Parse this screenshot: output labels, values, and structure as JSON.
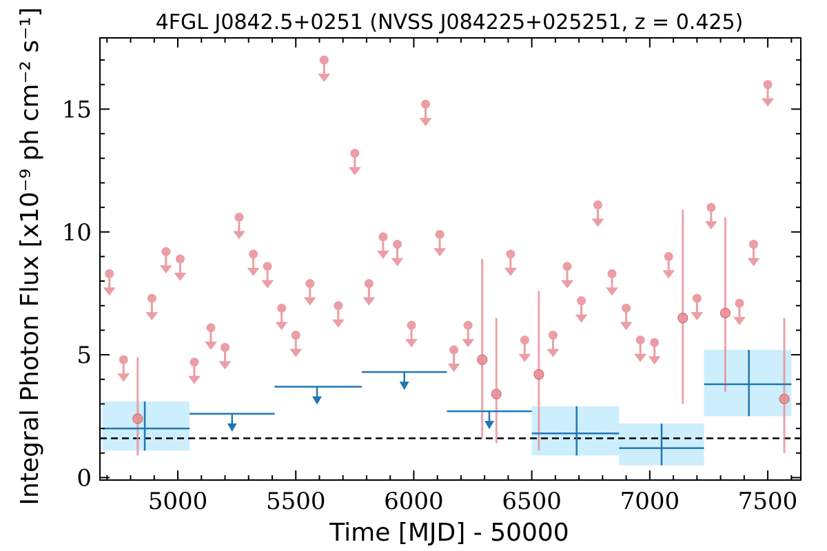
{
  "chart_data": {
    "type": "scatter",
    "title": "4FGL J0842.5+0251 (NVSS J084225+025251, z = 0.425)",
    "xlabel": "Time [MJD] - 50000",
    "ylabel": "Integral Photon Flux [x10⁻⁹ ph cm⁻² s⁻¹]",
    "xlim": [
      4670,
      7640
    ],
    "ylim": [
      -0.1,
      17.9
    ],
    "xticks": [
      5000,
      5500,
      6000,
      6500,
      7000,
      7500
    ],
    "yticks": [
      0,
      5,
      10,
      15
    ],
    "reference_level": 1.6,
    "short_bin_upper_limits": [
      {
        "x": 4710,
        "y": 8.3
      },
      {
        "x": 4770,
        "y": 4.8
      },
      {
        "x": 4890,
        "y": 7.3
      },
      {
        "x": 4950,
        "y": 9.2
      },
      {
        "x": 5010,
        "y": 8.9
      },
      {
        "x": 5070,
        "y": 4.7
      },
      {
        "x": 5140,
        "y": 6.1
      },
      {
        "x": 5200,
        "y": 5.3
      },
      {
        "x": 5260,
        "y": 10.6
      },
      {
        "x": 5320,
        "y": 9.1
      },
      {
        "x": 5380,
        "y": 8.6
      },
      {
        "x": 5440,
        "y": 6.9
      },
      {
        "x": 5500,
        "y": 5.8
      },
      {
        "x": 5560,
        "y": 7.9
      },
      {
        "x": 5620,
        "y": 17.0
      },
      {
        "x": 5680,
        "y": 7.0
      },
      {
        "x": 5750,
        "y": 13.2
      },
      {
        "x": 5810,
        "y": 7.9
      },
      {
        "x": 5870,
        "y": 9.8
      },
      {
        "x": 5930,
        "y": 9.5
      },
      {
        "x": 5990,
        "y": 6.2
      },
      {
        "x": 6050,
        "y": 15.2
      },
      {
        "x": 6110,
        "y": 9.9
      },
      {
        "x": 6170,
        "y": 5.2
      },
      {
        "x": 6230,
        "y": 6.2
      },
      {
        "x": 6410,
        "y": 9.1
      },
      {
        "x": 6470,
        "y": 5.6
      },
      {
        "x": 6590,
        "y": 5.8
      },
      {
        "x": 6650,
        "y": 8.6
      },
      {
        "x": 6710,
        "y": 7.2
      },
      {
        "x": 6780,
        "y": 11.1
      },
      {
        "x": 6840,
        "y": 8.3
      },
      {
        "x": 6900,
        "y": 6.9
      },
      {
        "x": 6960,
        "y": 5.6
      },
      {
        "x": 7020,
        "y": 5.5
      },
      {
        "x": 7080,
        "y": 9.0
      },
      {
        "x": 7200,
        "y": 7.3
      },
      {
        "x": 7260,
        "y": 11.0
      },
      {
        "x": 7380,
        "y": 7.1
      },
      {
        "x": 7440,
        "y": 9.5
      },
      {
        "x": 7500,
        "y": 16.0
      }
    ],
    "short_bin_detections": [
      {
        "x": 4830,
        "y": 2.4,
        "y_low": 0.9,
        "y_high": 4.9
      },
      {
        "x": 6290,
        "y": 4.8,
        "y_low": 1.6,
        "y_high": 8.9
      },
      {
        "x": 6350,
        "y": 3.4,
        "y_low": 1.4,
        "y_high": 6.5
      },
      {
        "x": 6530,
        "y": 4.2,
        "y_low": 1.1,
        "y_high": 7.6
      },
      {
        "x": 7140,
        "y": 6.5,
        "y_low": 3.0,
        "y_high": 10.9
      },
      {
        "x": 7320,
        "y": 6.7,
        "y_low": 3.5,
        "y_high": 10.6
      },
      {
        "x": 7570,
        "y": 3.2,
        "y_low": 1.0,
        "y_high": 6.5
      }
    ],
    "long_bin_detections": [
      {
        "x": 4860,
        "x_low": 4680,
        "x_high": 5050,
        "y": 2.0,
        "y_low": 1.1,
        "y_high": 3.1
      },
      {
        "x": 6690,
        "x_low": 6500,
        "x_high": 6870,
        "y": 1.8,
        "y_low": 0.9,
        "y_high": 2.9
      },
      {
        "x": 7050,
        "x_low": 6870,
        "x_high": 7230,
        "y": 1.2,
        "y_low": 0.5,
        "y_high": 2.2
      },
      {
        "x": 7420,
        "x_low": 7230,
        "x_high": 7600,
        "y": 3.8,
        "y_low": 2.5,
        "y_high": 5.2
      }
    ],
    "long_bin_upper_limits": [
      {
        "x": 5230,
        "x_low": 5050,
        "x_high": 5410,
        "y": 2.6
      },
      {
        "x": 5590,
        "x_low": 5410,
        "x_high": 5780,
        "y": 3.7
      },
      {
        "x": 5960,
        "x_low": 5780,
        "x_high": 6140,
        "y": 4.3
      },
      {
        "x": 6320,
        "x_low": 6140,
        "x_high": 6500,
        "y": 2.7
      }
    ],
    "colors": {
      "short_bins": "#e88e96",
      "long_bins": "#1f77b4",
      "long_bin_band": "#cdeefc",
      "reference_line": "#000000"
    },
    "grid": false
  }
}
